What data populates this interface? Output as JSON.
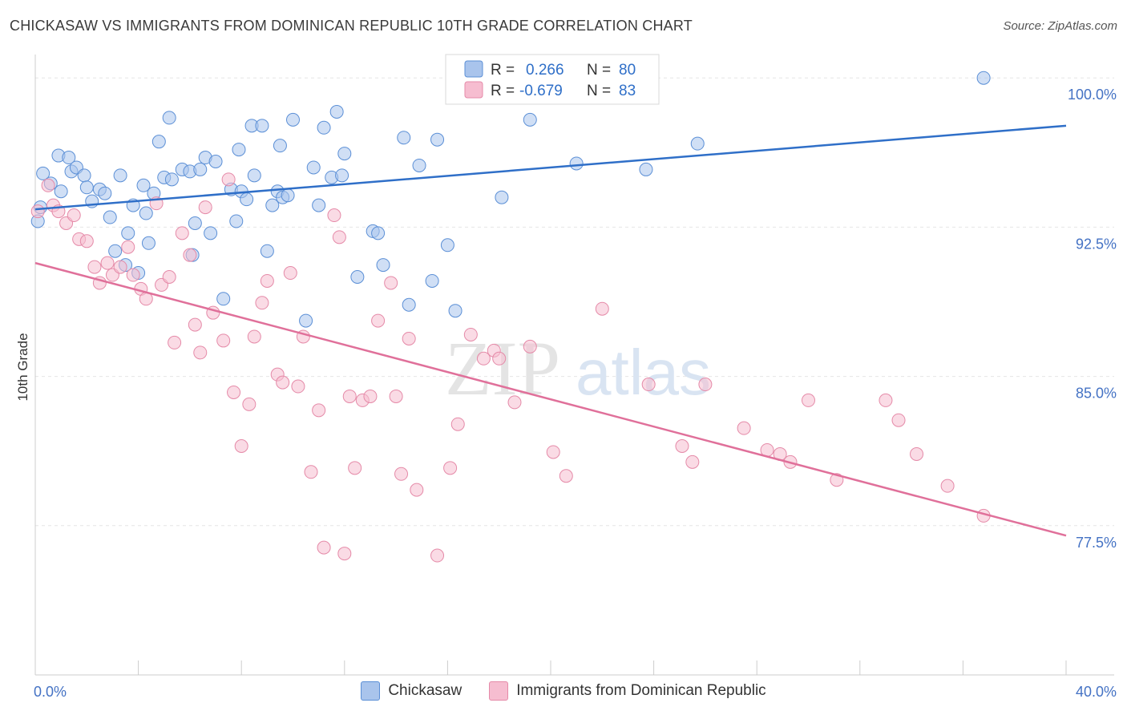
{
  "header": {
    "title": "CHICKASAW VS IMMIGRANTS FROM DOMINICAN REPUBLIC 10TH GRADE CORRELATION CHART",
    "source": "Source: ZipAtlas.com"
  },
  "watermark": {
    "part1": "ZIP",
    "part2": "atlas"
  },
  "legend": {
    "rows": [
      {
        "r_label": "R =",
        "r_value": "0.266",
        "n_label": "N =",
        "n_value": "80"
      },
      {
        "r_label": "R =",
        "r_value": "-0.679",
        "n_label": "N =",
        "n_value": "83"
      }
    ]
  },
  "bottom_legend": {
    "series1": "Chickasaw",
    "series2": "Immigrants from Dominican Republic"
  },
  "chart_data": {
    "type": "scatter",
    "ylabel": "10th Grade",
    "xlim": [
      0,
      40
    ],
    "ylim": [
      70,
      101.5
    ],
    "y_ticks": [
      {
        "value": 100,
        "label": "100.0%"
      },
      {
        "value": 92.5,
        "label": "92.5%"
      },
      {
        "value": 85,
        "label": "85.0%"
      },
      {
        "value": 77.5,
        "label": "77.5%"
      }
    ],
    "x_ticks": [
      {
        "value": 0,
        "label": "0.0%"
      },
      {
        "value": 40,
        "label": "40.0%"
      }
    ],
    "grid": true,
    "colors": {
      "series1_fill": "#a9c4ec",
      "series1_stroke": "#5b8fd6",
      "series1_line": "#2f6fc8",
      "series2_fill": "#f6bdd0",
      "series2_stroke": "#e58aa8",
      "series2_line": "#e0709a"
    },
    "series": [
      {
        "name": "Chickasaw",
        "trend": [
          [
            0,
            93.4
          ],
          [
            40,
            97.6
          ]
        ],
        "points": [
          [
            0.1,
            92.8
          ],
          [
            0.3,
            95.2
          ],
          [
            0.6,
            94.7
          ],
          [
            0.9,
            96.1
          ],
          [
            1.0,
            94.3
          ],
          [
            1.3,
            96.0
          ],
          [
            1.4,
            95.3
          ],
          [
            1.6,
            95.5
          ],
          [
            1.9,
            95.1
          ],
          [
            2.2,
            93.8
          ],
          [
            2.5,
            94.4
          ],
          [
            2.7,
            94.2
          ],
          [
            2.9,
            93.0
          ],
          [
            3.1,
            91.3
          ],
          [
            3.3,
            95.1
          ],
          [
            3.6,
            92.2
          ],
          [
            3.8,
            93.6
          ],
          [
            4.0,
            90.2
          ],
          [
            4.2,
            94.6
          ],
          [
            4.4,
            91.7
          ],
          [
            4.6,
            94.2
          ],
          [
            4.8,
            96.8
          ],
          [
            5.0,
            95.0
          ],
          [
            5.2,
            98.0
          ],
          [
            5.3,
            94.9
          ],
          [
            5.7,
            95.4
          ],
          [
            6.0,
            95.3
          ],
          [
            6.2,
            92.7
          ],
          [
            6.4,
            95.4
          ],
          [
            6.6,
            96.0
          ],
          [
            6.8,
            92.2
          ],
          [
            7.0,
            95.8
          ],
          [
            7.3,
            88.9
          ],
          [
            7.6,
            94.4
          ],
          [
            7.8,
            92.8
          ],
          [
            8.0,
            94.3
          ],
          [
            8.2,
            93.9
          ],
          [
            8.4,
            97.6
          ],
          [
            8.5,
            95.1
          ],
          [
            8.8,
            97.6
          ],
          [
            9.0,
            91.3
          ],
          [
            9.2,
            93.6
          ],
          [
            9.4,
            94.3
          ],
          [
            9.6,
            94.0
          ],
          [
            9.8,
            94.1
          ],
          [
            10.0,
            97.9
          ],
          [
            10.5,
            87.8
          ],
          [
            10.8,
            95.5
          ],
          [
            11.0,
            93.6
          ],
          [
            11.2,
            97.5
          ],
          [
            11.5,
            95.0
          ],
          [
            11.7,
            98.3
          ],
          [
            11.9,
            95.1
          ],
          [
            12.0,
            96.2
          ],
          [
            12.5,
            90.0
          ],
          [
            13.1,
            92.3
          ],
          [
            13.3,
            92.2
          ],
          [
            13.5,
            90.6
          ],
          [
            14.3,
            97.0
          ],
          [
            14.5,
            88.6
          ],
          [
            14.9,
            95.6
          ],
          [
            15.4,
            89.8
          ],
          [
            15.6,
            96.9
          ],
          [
            16.0,
            91.6
          ],
          [
            16.3,
            88.3
          ],
          [
            18.1,
            94.0
          ],
          [
            18.5,
            100.0
          ],
          [
            19.2,
            97.9
          ],
          [
            21.0,
            95.7
          ],
          [
            22.0,
            100.0
          ],
          [
            23.7,
            95.4
          ],
          [
            25.7,
            96.7
          ],
          [
            36.8,
            100.0
          ],
          [
            0.2,
            93.5
          ],
          [
            2.0,
            94.5
          ],
          [
            4.3,
            93.2
          ],
          [
            6.1,
            91.1
          ],
          [
            7.9,
            96.4
          ],
          [
            9.5,
            96.6
          ],
          [
            3.5,
            90.6
          ]
        ]
      },
      {
        "name": "Immigrants from Dominican Republic",
        "trend": [
          [
            0,
            90.7
          ],
          [
            40,
            77.0
          ]
        ],
        "points": [
          [
            0.1,
            93.3
          ],
          [
            0.5,
            94.6
          ],
          [
            0.7,
            93.6
          ],
          [
            0.9,
            93.3
          ],
          [
            1.2,
            92.7
          ],
          [
            1.5,
            93.1
          ],
          [
            1.7,
            91.9
          ],
          [
            2.0,
            91.8
          ],
          [
            2.3,
            90.5
          ],
          [
            2.5,
            89.7
          ],
          [
            2.8,
            90.7
          ],
          [
            3.0,
            90.1
          ],
          [
            3.3,
            90.5
          ],
          [
            3.6,
            91.5
          ],
          [
            3.8,
            90.1
          ],
          [
            4.1,
            89.4
          ],
          [
            4.3,
            88.9
          ],
          [
            4.7,
            93.7
          ],
          [
            4.9,
            89.6
          ],
          [
            5.2,
            90.0
          ],
          [
            5.4,
            86.7
          ],
          [
            5.7,
            92.2
          ],
          [
            6.0,
            91.1
          ],
          [
            6.2,
            87.6
          ],
          [
            6.4,
            86.2
          ],
          [
            6.6,
            93.5
          ],
          [
            6.9,
            88.2
          ],
          [
            7.3,
            86.8
          ],
          [
            7.5,
            94.9
          ],
          [
            7.7,
            84.2
          ],
          [
            8.0,
            81.5
          ],
          [
            8.3,
            83.6
          ],
          [
            8.5,
            87.0
          ],
          [
            8.8,
            88.7
          ],
          [
            9.0,
            89.8
          ],
          [
            9.4,
            85.1
          ],
          [
            9.6,
            84.7
          ],
          [
            9.9,
            90.2
          ],
          [
            10.2,
            84.5
          ],
          [
            10.4,
            87.0
          ],
          [
            10.7,
            80.2
          ],
          [
            11.0,
            83.3
          ],
          [
            11.2,
            76.4
          ],
          [
            11.6,
            93.1
          ],
          [
            11.8,
            92.0
          ],
          [
            12.0,
            76.1
          ],
          [
            12.2,
            84.0
          ],
          [
            12.4,
            80.4
          ],
          [
            12.7,
            83.8
          ],
          [
            13.0,
            84.0
          ],
          [
            13.3,
            87.8
          ],
          [
            13.8,
            89.7
          ],
          [
            14.0,
            84.0
          ],
          [
            14.2,
            80.1
          ],
          [
            14.5,
            86.9
          ],
          [
            14.8,
            79.3
          ],
          [
            15.6,
            76.0
          ],
          [
            16.1,
            80.4
          ],
          [
            16.4,
            82.6
          ],
          [
            16.9,
            87.1
          ],
          [
            17.4,
            85.9
          ],
          [
            17.8,
            86.3
          ],
          [
            18.0,
            85.9
          ],
          [
            18.6,
            83.7
          ],
          [
            19.2,
            86.5
          ],
          [
            20.1,
            81.2
          ],
          [
            20.6,
            80.0
          ],
          [
            22.0,
            88.4
          ],
          [
            23.8,
            84.6
          ],
          [
            25.1,
            81.5
          ],
          [
            25.5,
            80.7
          ],
          [
            26.0,
            84.6
          ],
          [
            27.5,
            82.4
          ],
          [
            28.4,
            81.3
          ],
          [
            28.9,
            81.1
          ],
          [
            29.3,
            80.7
          ],
          [
            30.0,
            83.8
          ],
          [
            31.1,
            79.8
          ],
          [
            33.0,
            83.8
          ],
          [
            33.5,
            82.8
          ],
          [
            34.2,
            81.1
          ],
          [
            35.4,
            79.5
          ],
          [
            36.8,
            78.0
          ]
        ]
      }
    ]
  }
}
